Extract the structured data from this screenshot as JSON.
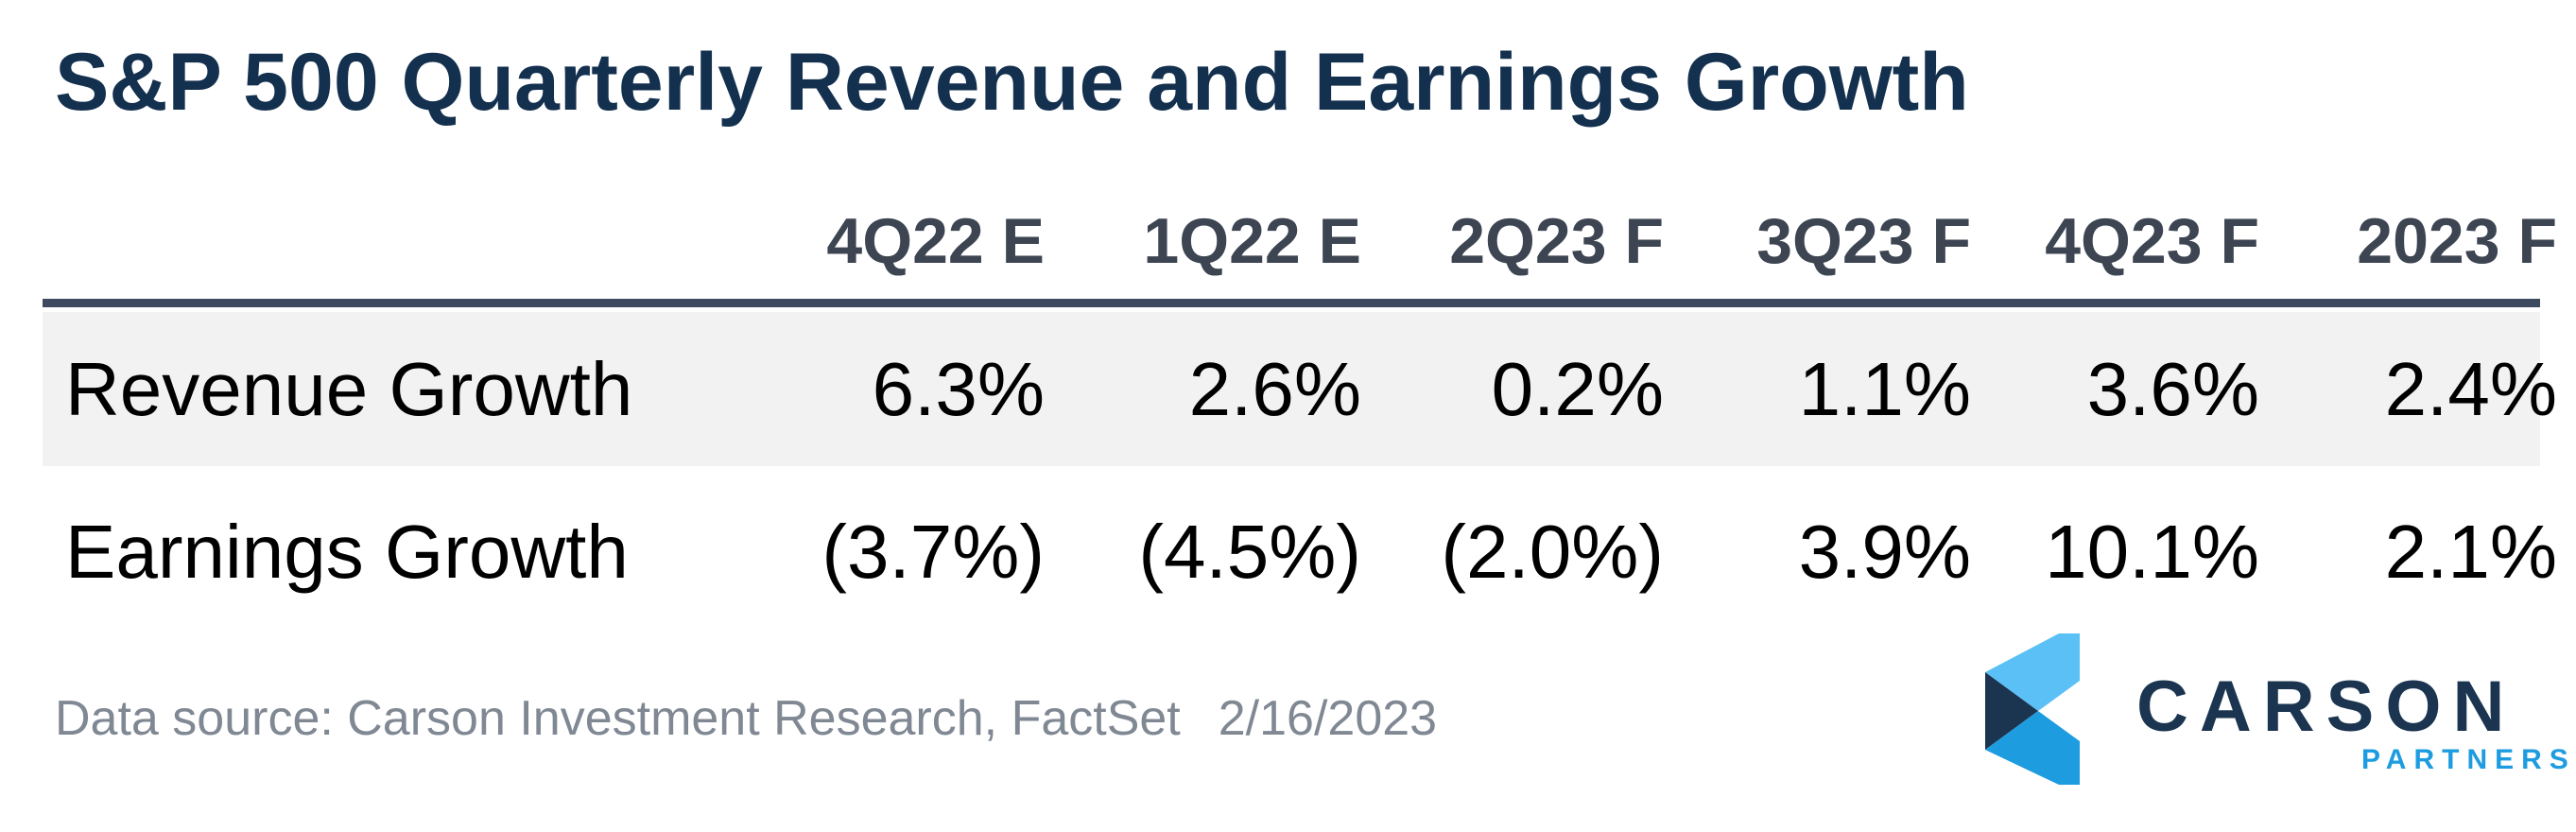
{
  "chart_data": {
    "type": "table",
    "title": "S&P 500 Quarterly Revenue and Earnings Growth",
    "columns": [
      "4Q22 E",
      "1Q22 E",
      "2Q23 F",
      "3Q23 F",
      "4Q23 F",
      "2023 F"
    ],
    "rows": [
      {
        "label": "Revenue Growth",
        "cells": [
          "6.3%",
          "2.6%",
          "0.2%",
          "1.1%",
          "3.6%",
          "2.4%"
        ]
      },
      {
        "label": "Earnings Growth",
        "cells": [
          "(3.7%)",
          "(4.5%)",
          "(2.0%)",
          "3.9%",
          "10.1%",
          "2.1%"
        ]
      }
    ]
  },
  "footer": {
    "source": "Data source: Carson Investment Research, FactSet",
    "date": "2/16/2023"
  },
  "logo": {
    "name": "CARSON",
    "subtitle": "PARTNERS",
    "colors": {
      "dark": "#1b3551",
      "light": "#5ac0f5",
      "mid": "#1e9ce0"
    }
  },
  "colors": {
    "title": "#14304f",
    "header_text": "#3d4552",
    "rule": "#3e4a5f",
    "row_shade": "#f2f2f2",
    "source_text": "#808893"
  }
}
